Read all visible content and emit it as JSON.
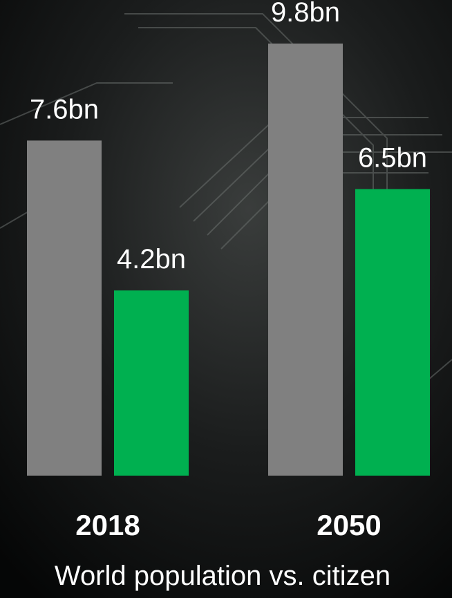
{
  "chart_data": {
    "type": "bar",
    "title": "World population vs. citizen",
    "categories": [
      "2018",
      "2050"
    ],
    "series": [
      {
        "color": "#808080",
        "values": [
          7.6,
          9.8
        ],
        "value_labels": [
          "7.6bn",
          "9.8bn"
        ]
      },
      {
        "color": "#00b050",
        "values": [
          4.2,
          6.5
        ],
        "value_labels": [
          "4.2bn",
          "6.5bn"
        ]
      }
    ]
  }
}
